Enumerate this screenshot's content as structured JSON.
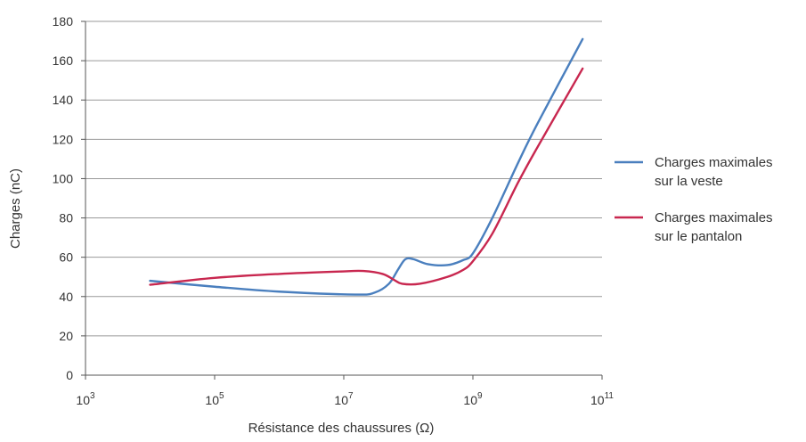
{
  "chart_data": {
    "type": "line",
    "title": "",
    "xlabel": "Résistance des chaussures (Ω)",
    "ylabel": "Charges (nC)",
    "x_scale": "log",
    "x_unit": "Ω",
    "xlim": [
      1000,
      100000000000
    ],
    "ylim": [
      0,
      180
    ],
    "grid": "horizontal",
    "legend_position": "right",
    "y_ticks": [
      "0",
      "20",
      "40",
      "60",
      "80",
      "100",
      "120",
      "140",
      "160",
      "180"
    ],
    "x_ticks": [
      {
        "base": "10",
        "exp": "3"
      },
      {
        "base": "10",
        "exp": "5"
      },
      {
        "base": "10",
        "exp": "7"
      },
      {
        "base": "10",
        "exp": "9"
      },
      {
        "base": "10",
        "exp": "11"
      }
    ],
    "series": [
      {
        "name_lines": [
          "Charges maximales",
          "sur la veste"
        ],
        "color": "#4a7fbe",
        "points": [
          [
            10000,
            48
          ],
          [
            100000,
            45
          ],
          [
            1000000,
            42.5
          ],
          [
            15000000,
            41
          ],
          [
            30000000,
            42
          ],
          [
            50000000,
            46.5
          ],
          [
            70000000,
            54
          ],
          [
            90000000,
            59
          ],
          [
            120000000,
            59
          ],
          [
            200000000,
            56.5
          ],
          [
            400000000,
            56
          ],
          [
            700000000,
            58.5
          ],
          [
            1000000000,
            62
          ],
          [
            2000000000,
            80
          ],
          [
            5000000000,
            108
          ],
          [
            10000000000,
            128
          ],
          [
            50000000000,
            171
          ]
        ]
      },
      {
        "name_lines": [
          "Charges maximales",
          "sur le pantalon"
        ],
        "color": "#c8274f",
        "points": [
          [
            10000,
            46
          ],
          [
            100000,
            49.5
          ],
          [
            1000000,
            51.5
          ],
          [
            10000000,
            52.8
          ],
          [
            20000000,
            53
          ],
          [
            40000000,
            51.5
          ],
          [
            60000000,
            48.5
          ],
          [
            80000000,
            46.5
          ],
          [
            150000000,
            46.5
          ],
          [
            400000000,
            50
          ],
          [
            700000000,
            53.5
          ],
          [
            1000000000,
            58
          ],
          [
            2000000000,
            72
          ],
          [
            5000000000,
            98
          ],
          [
            10000000000,
            116
          ],
          [
            50000000000,
            156
          ]
        ]
      }
    ]
  }
}
